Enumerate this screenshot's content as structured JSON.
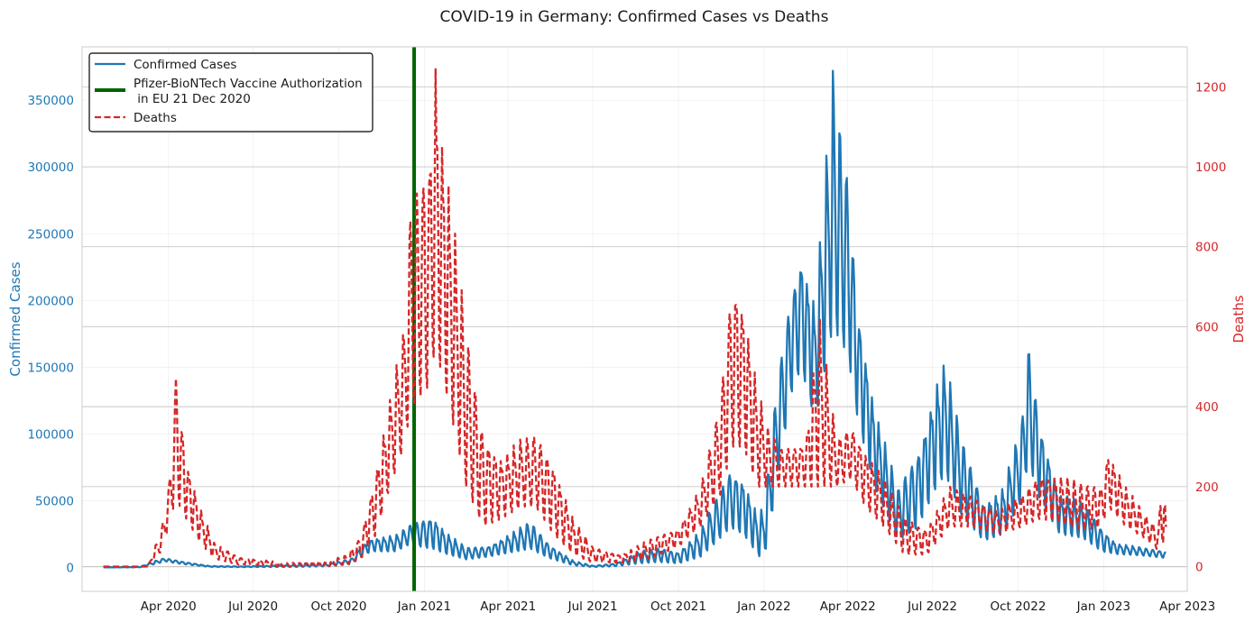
{
  "colors": {
    "cases": "#1f77b4",
    "deaths": "#d62728",
    "vaccine": "#006400",
    "grid": "#e6e6e6",
    "right_grid": "#c8c8c8",
    "spine": "#cccccc",
    "text": "#1a1a1a"
  },
  "chart_data": {
    "type": "line",
    "title": "COVID-19 in Germany: Confirmed Cases vs Deaths",
    "xlabel": "",
    "x_range": [
      "2020-01-22",
      "2023-03-09"
    ],
    "x_ticks": [
      {
        "date": "2020-04-01",
        "label": "Apr 2020"
      },
      {
        "date": "2020-07-01",
        "label": "Jul 2020"
      },
      {
        "date": "2020-10-01",
        "label": "Oct 2020"
      },
      {
        "date": "2021-01-01",
        "label": "Jan 2021"
      },
      {
        "date": "2021-04-01",
        "label": "Apr 2021"
      },
      {
        "date": "2021-07-01",
        "label": "Jul 2021"
      },
      {
        "date": "2021-10-01",
        "label": "Oct 2021"
      },
      {
        "date": "2022-01-01",
        "label": "Jan 2022"
      },
      {
        "date": "2022-04-01",
        "label": "Apr 2022"
      },
      {
        "date": "2022-07-01",
        "label": "Jul 2022"
      },
      {
        "date": "2022-10-01",
        "label": "Oct 2022"
      },
      {
        "date": "2023-01-01",
        "label": "Jan 2023"
      },
      {
        "date": "2023-04-01",
        "label": "Apr 2023"
      }
    ],
    "left_axis": {
      "label": "Confirmed Cases",
      "ylim": [
        -18000,
        390000
      ],
      "ticks": [
        0,
        50000,
        100000,
        150000,
        200000,
        250000,
        300000,
        350000
      ],
      "tick_labels": [
        "0",
        "50000",
        "100000",
        "150000",
        "200000",
        "250000",
        "300000",
        "350000"
      ]
    },
    "right_axis": {
      "label": "Deaths",
      "ylim": [
        -62,
        1300
      ],
      "ticks": [
        0,
        200,
        400,
        600,
        800,
        1000,
        1200
      ],
      "tick_labels": [
        "0",
        "200",
        "400",
        "600",
        "800",
        "1000",
        "1200"
      ]
    },
    "vaccine_line": {
      "date": "2020-12-21"
    },
    "legend": {
      "position": "upper-left",
      "entries": [
        {
          "label": "Confirmed Cases",
          "style": "solid-blue"
        },
        {
          "label_line1": "Pfizer-BioNTech Vaccine Authorization",
          "label_line2": " in EU 21 Dec 2020",
          "style": "solid-green"
        },
        {
          "label": "Deaths",
          "style": "dashed-red"
        }
      ]
    },
    "series": [
      {
        "name": "Confirmed Cases",
        "axis": "left",
        "approx_daily": true,
        "peak": {
          "date": "2022-03-16",
          "value": 372000
        },
        "envelope": [
          [
            "2020-01-22",
            0,
            0
          ],
          [
            "2020-03-01",
            300,
            50
          ],
          [
            "2020-03-18",
            5000,
            2500
          ],
          [
            "2020-03-28",
            7000,
            4500
          ],
          [
            "2020-04-15",
            4500,
            2500
          ],
          [
            "2020-05-15",
            1000,
            400
          ],
          [
            "2020-06-20",
            700,
            200
          ],
          [
            "2020-08-15",
            1800,
            300
          ],
          [
            "2020-09-20",
            2500,
            800
          ],
          [
            "2020-10-15",
            7000,
            2500
          ],
          [
            "2020-10-25",
            16000,
            8000
          ],
          [
            "2020-11-05",
            22000,
            12000
          ],
          [
            "2020-12-01",
            24000,
            12000
          ],
          [
            "2020-12-18",
            33000,
            18000
          ],
          [
            "2020-12-30",
            37000,
            15000
          ],
          [
            "2021-01-10",
            40000,
            14000
          ],
          [
            "2021-01-25",
            26000,
            10000
          ],
          [
            "2021-02-15",
            15000,
            6000
          ],
          [
            "2021-03-10",
            16000,
            8000
          ],
          [
            "2021-04-10",
            28000,
            12000
          ],
          [
            "2021-04-25",
            35000,
            14000
          ],
          [
            "2021-05-15",
            18000,
            7000
          ],
          [
            "2021-06-10",
            5000,
            1500
          ],
          [
            "2021-07-01",
            1200,
            300
          ],
          [
            "2021-07-25",
            3000,
            800
          ],
          [
            "2021-08-20",
            12000,
            3000
          ],
          [
            "2021-09-10",
            15000,
            4000
          ],
          [
            "2021-10-01",
            12000,
            3000
          ],
          [
            "2021-10-25",
            28000,
            8000
          ],
          [
            "2021-11-12",
            55000,
            20000
          ],
          [
            "2021-11-26",
            76000,
            30000
          ],
          [
            "2021-12-10",
            68000,
            25000
          ],
          [
            "2021-12-25",
            40000,
            10000
          ],
          [
            "2021-12-31",
            45000,
            5000
          ],
          [
            "2022-01-05",
            70000,
            20000
          ],
          [
            "2022-01-15",
            140000,
            65000
          ],
          [
            "2022-01-30",
            210000,
            130000
          ],
          [
            "2022-02-10",
            240000,
            150000
          ],
          [
            "2022-02-25",
            200000,
            110000
          ],
          [
            "2022-03-16",
            372000,
            180000
          ],
          [
            "2022-04-01",
            300000,
            160000
          ],
          [
            "2022-04-12",
            200000,
            110000
          ],
          [
            "2022-04-30",
            120000,
            60000
          ],
          [
            "2022-05-25",
            60000,
            20000
          ],
          [
            "2022-06-15",
            90000,
            30000
          ],
          [
            "2022-07-05",
            140000,
            60000
          ],
          [
            "2022-07-15",
            155000,
            70000
          ],
          [
            "2022-08-01",
            100000,
            40000
          ],
          [
            "2022-08-25",
            50000,
            20000
          ],
          [
            "2022-09-15",
            60000,
            25000
          ],
          [
            "2022-10-05",
            110000,
            50000
          ],
          [
            "2022-10-12",
            172000,
            80000
          ],
          [
            "2022-10-25",
            110000,
            50000
          ],
          [
            "2022-11-15",
            55000,
            25000
          ],
          [
            "2022-12-10",
            50000,
            22000
          ],
          [
            "2022-12-30",
            30000,
            12000
          ],
          [
            "2023-01-15",
            18000,
            10000
          ],
          [
            "2023-02-10",
            15000,
            9000
          ],
          [
            "2023-03-09",
            12000,
            7000
          ]
        ]
      },
      {
        "name": "Deaths",
        "axis": "right",
        "approx_daily": true,
        "peak": {
          "date": "2021-01-13",
          "value": 1244
        },
        "envelope": [
          [
            "2020-01-22",
            0,
            0
          ],
          [
            "2020-03-10",
            0,
            0
          ],
          [
            "2020-03-25",
            100,
            40
          ],
          [
            "2020-04-02",
            220,
            110
          ],
          [
            "2020-04-09",
            510,
            170
          ],
          [
            "2020-04-20",
            280,
            120
          ],
          [
            "2020-05-05",
            150,
            60
          ],
          [
            "2020-05-20",
            60,
            20
          ],
          [
            "2020-06-15",
            25,
            5
          ],
          [
            "2020-08-01",
            10,
            0
          ],
          [
            "2020-09-15",
            10,
            0
          ],
          [
            "2020-10-10",
            30,
            5
          ],
          [
            "2020-10-25",
            80,
            20
          ],
          [
            "2020-11-10",
            250,
            80
          ],
          [
            "2020-11-25",
            420,
            200
          ],
          [
            "2020-12-10",
            600,
            300
          ],
          [
            "2020-12-18",
            950,
            400
          ],
          [
            "2021-01-05",
            1050,
            450
          ],
          [
            "2021-01-13",
            1244,
            550
          ],
          [
            "2021-01-28",
            950,
            400
          ],
          [
            "2021-02-15",
            600,
            200
          ],
          [
            "2021-03-05",
            350,
            100
          ],
          [
            "2021-03-25",
            280,
            120
          ],
          [
            "2021-04-15",
            320,
            150
          ],
          [
            "2021-05-01",
            340,
            150
          ],
          [
            "2021-05-20",
            270,
            80
          ],
          [
            "2021-06-10",
            120,
            30
          ],
          [
            "2021-07-01",
            50,
            10
          ],
          [
            "2021-08-01",
            30,
            10
          ],
          [
            "2021-09-01",
            70,
            20
          ],
          [
            "2021-10-01",
            100,
            50
          ],
          [
            "2021-10-25",
            200,
            100
          ],
          [
            "2021-11-15",
            420,
            180
          ],
          [
            "2021-11-28",
            760,
            300
          ],
          [
            "2021-12-10",
            680,
            300
          ],
          [
            "2021-12-25",
            450,
            200
          ],
          [
            "2022-01-05",
            350,
            200
          ],
          [
            "2022-01-20",
            300,
            200
          ],
          [
            "2022-02-15",
            320,
            200
          ],
          [
            "2022-03-01",
            640,
            200
          ],
          [
            "2022-03-20",
            320,
            200
          ],
          [
            "2022-04-05",
            360,
            220
          ],
          [
            "2022-04-20",
            300,
            150
          ],
          [
            "2022-05-10",
            220,
            100
          ],
          [
            "2022-06-01",
            130,
            30
          ],
          [
            "2022-06-25",
            100,
            30
          ],
          [
            "2022-07-20",
            200,
            100
          ],
          [
            "2022-08-15",
            180,
            100
          ],
          [
            "2022-09-10",
            140,
            80
          ],
          [
            "2022-10-05",
            180,
            100
          ],
          [
            "2022-10-25",
            240,
            120
          ],
          [
            "2022-11-15",
            230,
            110
          ],
          [
            "2022-12-10",
            210,
            90
          ],
          [
            "2022-12-30",
            210,
            100
          ],
          [
            "2023-01-06",
            300,
            150
          ],
          [
            "2023-01-25",
            200,
            100
          ],
          [
            "2023-02-15",
            130,
            70
          ],
          [
            "2023-03-01",
            100,
            40
          ],
          [
            "2023-03-06",
            310,
            60
          ],
          [
            "2023-03-09",
            110,
            50
          ]
        ]
      }
    ]
  }
}
